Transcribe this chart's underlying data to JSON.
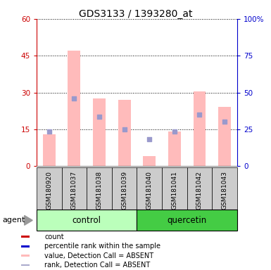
{
  "title": "GDS3133 / 1393280_at",
  "samples": [
    "GSM180920",
    "GSM181037",
    "GSM181038",
    "GSM181039",
    "GSM181040",
    "GSM181041",
    "GSM181042",
    "GSM181043"
  ],
  "pink_bars": [
    13.0,
    47.0,
    27.5,
    27.0,
    4.0,
    14.0,
    30.5,
    24.0
  ],
  "blue_squares_left": [
    14.0,
    27.5,
    20.0,
    15.0,
    11.0,
    14.0,
    21.0,
    18.0
  ],
  "ylim_left": [
    0,
    60
  ],
  "ylim_right": [
    0,
    100
  ],
  "yticks_left": [
    0,
    15,
    30,
    45,
    60
  ],
  "yticks_right": [
    0,
    25,
    50,
    75,
    100
  ],
  "ytick_labels_left": [
    "0",
    "15",
    "30",
    "45",
    "60"
  ],
  "ytick_labels_right": [
    "0",
    "25",
    "50",
    "75",
    "100%"
  ],
  "left_axis_color": "#cc0000",
  "right_axis_color": "#0000cc",
  "pink_bar_color": "#ffbbbb",
  "blue_sq_color": "#9999cc",
  "bg_sample_label": "#cccccc",
  "bg_group_control": "#bbffbb",
  "bg_group_quercetin": "#44cc44",
  "legend_items": [
    {
      "label": "count",
      "color": "#cc0000"
    },
    {
      "label": "percentile rank within the sample",
      "color": "#0000cc"
    },
    {
      "label": "value, Detection Call = ABSENT",
      "color": "#ffbbbb"
    },
    {
      "label": "rank, Detection Call = ABSENT",
      "color": "#aaaacc"
    }
  ],
  "title_fontsize": 10,
  "tick_fontsize": 7.5,
  "sample_fontsize": 6.5,
  "group_fontsize": 8.5,
  "legend_fontsize": 7,
  "agent_fontsize": 8
}
